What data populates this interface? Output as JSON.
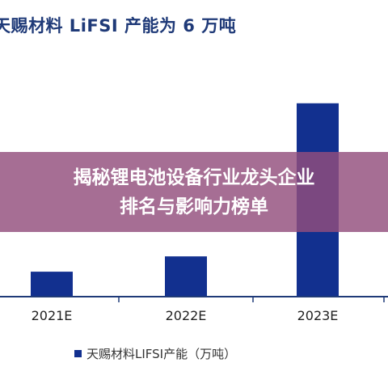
{
  "chart_data": {
    "type": "bar",
    "title": "天赐材料 LiFSI 产能为 6 万吨",
    "categories": [
      "2021E",
      "2022E",
      "2023E"
    ],
    "series": [
      {
        "name": "天赐材料LIFSI产能（万吨）",
        "values": [
          0.62,
          1.0,
          4.8
        ]
      }
    ],
    "ylim": [
      0,
      6.2
    ],
    "grid": false,
    "legend_position": "bottom",
    "bar_color": "#12308f",
    "axis_color": "#1f3a78"
  },
  "overlay": {
    "line1": "揭秘锂电池设备行业龙头企业",
    "line2": "排名与影响力榜单"
  }
}
